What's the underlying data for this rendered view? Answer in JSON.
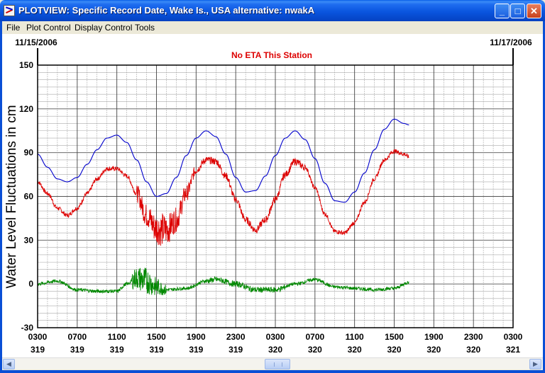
{
  "window": {
    "title": "PLOTVIEW: Specific Record Date, Wake Is., USA alternative: nwakA",
    "buttons": {
      "minimize": "_",
      "maximize": "□",
      "close": "✕"
    }
  },
  "menu": [
    "File",
    "Plot Control",
    "Display Control",
    "Tools"
  ],
  "icons": [
    "app-icon",
    "minimize-icon",
    "maximize-icon",
    "close-icon",
    "scroll-left-icon",
    "scroll-right-icon"
  ],
  "chart_data": {
    "type": "line",
    "title": "No ETA This Station",
    "title_color": "#dd0000",
    "start_date": "11/15/2006",
    "end_date": "11/17/2006",
    "ylabel": "Water Level Fluctuations in cm",
    "xlabel": "",
    "ylim": [
      -30,
      150
    ],
    "yticks": [
      -30,
      0,
      30,
      60,
      90,
      120,
      150
    ],
    "grid": true,
    "x_ticks": [
      {
        "time": "0300",
        "day": "319"
      },
      {
        "time": "0700",
        "day": "319"
      },
      {
        "time": "1100",
        "day": "319"
      },
      {
        "time": "1500",
        "day": "319"
      },
      {
        "time": "1900",
        "day": "319"
      },
      {
        "time": "2300",
        "day": "319"
      },
      {
        "time": "0300",
        "day": "320"
      },
      {
        "time": "0700",
        "day": "320"
      },
      {
        "time": "1100",
        "day": "320"
      },
      {
        "time": "1500",
        "day": "320"
      },
      {
        "time": "1900",
        "day": "320"
      },
      {
        "time": "2300",
        "day": "320"
      },
      {
        "time": "0300",
        "day": "321"
      }
    ],
    "xlim_hours": [
      0,
      48
    ],
    "series": [
      {
        "color": "#0000cc",
        "points": [
          [
            0,
            89
          ],
          [
            1,
            80
          ],
          [
            2,
            72
          ],
          [
            3,
            70
          ],
          [
            4,
            73
          ],
          [
            5,
            82
          ],
          [
            6,
            92
          ],
          [
            7,
            100
          ],
          [
            8,
            102
          ],
          [
            9,
            97
          ],
          [
            10,
            85
          ],
          [
            11,
            70
          ],
          [
            12,
            60
          ],
          [
            13,
            62
          ],
          [
            14,
            73
          ],
          [
            15,
            88
          ],
          [
            16,
            100
          ],
          [
            17,
            105
          ],
          [
            18,
            101
          ],
          [
            19,
            89
          ],
          [
            20,
            73
          ],
          [
            21,
            63
          ],
          [
            22,
            64
          ],
          [
            23,
            74
          ],
          [
            24,
            88
          ],
          [
            25,
            100
          ],
          [
            26,
            105
          ],
          [
            27,
            99
          ],
          [
            28,
            86
          ],
          [
            29,
            69
          ],
          [
            30,
            57
          ],
          [
            31,
            56
          ],
          [
            32,
            63
          ],
          [
            33,
            76
          ],
          [
            34,
            92
          ],
          [
            35,
            106
          ],
          [
            36,
            113
          ],
          [
            37,
            110
          ],
          [
            37.5,
            109
          ]
        ]
      },
      {
        "color": "#dd0000",
        "noise": "heavy between hours 12-17",
        "points": [
          [
            0,
            70
          ],
          [
            1,
            62
          ],
          [
            2,
            52
          ],
          [
            3,
            47
          ],
          [
            4,
            52
          ],
          [
            5,
            62
          ],
          [
            6,
            72
          ],
          [
            7,
            79
          ],
          [
            8,
            79
          ],
          [
            9,
            74
          ],
          [
            10,
            62
          ],
          [
            11,
            47
          ],
          [
            12,
            38
          ],
          [
            13,
            37
          ],
          [
            14,
            44
          ],
          [
            15,
            62
          ],
          [
            16,
            78
          ],
          [
            17,
            85
          ],
          [
            18,
            84
          ],
          [
            19,
            74
          ],
          [
            20,
            58
          ],
          [
            21,
            44
          ],
          [
            22,
            37
          ],
          [
            23,
            44
          ],
          [
            24,
            58
          ],
          [
            25,
            75
          ],
          [
            26,
            84
          ],
          [
            27,
            80
          ],
          [
            28,
            66
          ],
          [
            29,
            48
          ],
          [
            30,
            36
          ],
          [
            31,
            35
          ],
          [
            32,
            42
          ],
          [
            33,
            56
          ],
          [
            34,
            72
          ],
          [
            35,
            85
          ],
          [
            36,
            91
          ],
          [
            37,
            89
          ],
          [
            37.5,
            87
          ]
        ]
      },
      {
        "color": "#008800",
        "noise": "heavy between hours 9-13",
        "points": [
          [
            0,
            0
          ],
          [
            2,
            2
          ],
          [
            4,
            -4
          ],
          [
            6,
            -5
          ],
          [
            8,
            -5
          ],
          [
            9,
            0
          ],
          [
            10,
            4
          ],
          [
            11,
            2
          ],
          [
            12,
            -2
          ],
          [
            13,
            -4
          ],
          [
            15,
            -3
          ],
          [
            17,
            2
          ],
          [
            18,
            3
          ],
          [
            20,
            0
          ],
          [
            22,
            -4
          ],
          [
            24,
            -4
          ],
          [
            26,
            0
          ],
          [
            28,
            3
          ],
          [
            30,
            -2
          ],
          [
            32,
            -3
          ],
          [
            34,
            -4
          ],
          [
            36,
            -3
          ],
          [
            37.5,
            1
          ]
        ]
      }
    ]
  }
}
